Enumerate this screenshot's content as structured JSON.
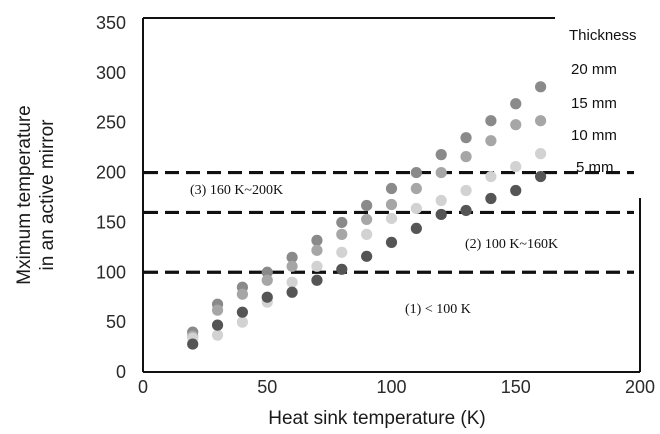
{
  "chart_data": {
    "type": "scatter",
    "title": "",
    "xlabel": "Heat sink temperature (K)",
    "ylabel_lines": [
      "Mximum temperature",
      "in an active mirror"
    ],
    "xlim": [
      0,
      200
    ],
    "ylim": [
      0,
      350
    ],
    "x_ticks": [
      "0",
      "50",
      "100",
      "150",
      "200"
    ],
    "y_ticks": [
      "0",
      "50",
      "100",
      "150",
      "200",
      "250",
      "300",
      "350"
    ],
    "grid": false,
    "legend_title": "Thickness",
    "legend_position": "top-right",
    "x": [
      20,
      30,
      40,
      50,
      60,
      70,
      80,
      90,
      100,
      110,
      120,
      130,
      140,
      150,
      160
    ],
    "series": [
      {
        "name": "20 mm",
        "color": "#8a8a8a",
        "values": [
          40,
          68,
          85,
          100,
          115,
          132,
          150,
          167,
          184,
          200,
          218,
          235,
          252,
          269,
          286
        ]
      },
      {
        "name": "15 mm",
        "color": "#a6a6a6",
        "values": [
          36,
          62,
          78,
          92,
          106,
          122,
          138,
          153,
          168,
          184,
          200,
          216,
          232,
          248,
          252
        ]
      },
      {
        "name": "10 mm",
        "color": "#d2d2d2",
        "values": [
          34,
          37,
          50,
          70,
          90,
          106,
          120,
          138,
          154,
          164,
          172,
          182,
          196,
          206,
          219
        ]
      },
      {
        "name": "5 mm",
        "color": "#555555",
        "values": [
          28,
          47,
          60,
          75,
          80,
          92,
          103,
          116,
          130,
          144,
          158,
          162,
          174,
          182,
          196
        ]
      }
    ],
    "reference_lines": [
      {
        "y": 200,
        "style": "dashed"
      },
      {
        "y": 160,
        "style": "dashed"
      },
      {
        "y": 100,
        "style": "dashed"
      }
    ],
    "annotations": [
      {
        "text": "(3) 160 K~200K"
      },
      {
        "text": "(2) 100 K~160K"
      },
      {
        "text": "(1) < 100 K"
      }
    ]
  }
}
